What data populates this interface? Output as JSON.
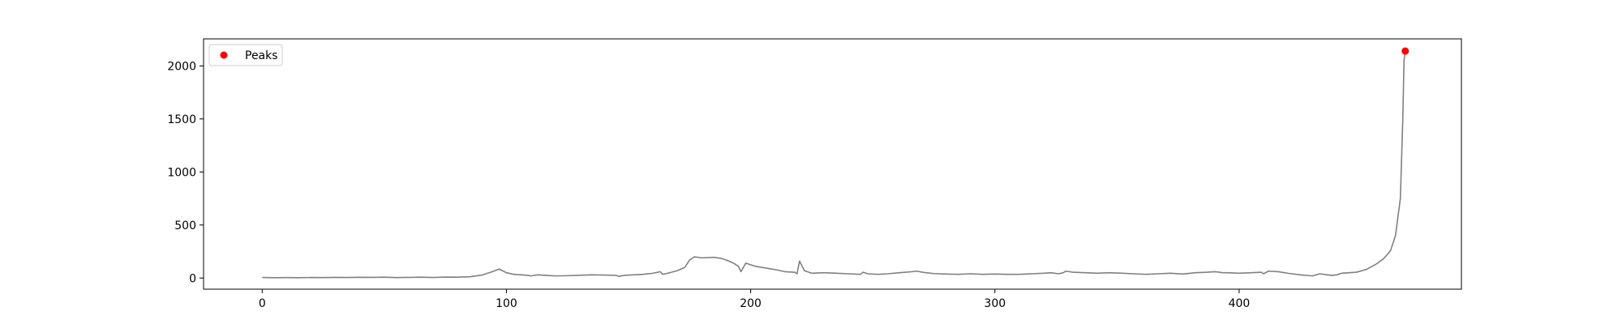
{
  "chart_data": {
    "type": "line",
    "title": "",
    "xlabel": "",
    "ylabel": "",
    "xlim": [
      -24,
      491
    ],
    "ylim": [
      -105,
      2255
    ],
    "xticks": [
      0,
      100,
      200,
      300,
      400
    ],
    "yticks": [
      0,
      500,
      1000,
      1500,
      2000
    ],
    "grid": false,
    "legend": {
      "placement": "upper-left",
      "entries": [
        "Peaks"
      ]
    },
    "series": [
      {
        "style": "line",
        "color": "#808080",
        "x": [
          0,
          5,
          10,
          15,
          20,
          25,
          30,
          35,
          40,
          45,
          50,
          55,
          60,
          65,
          70,
          75,
          80,
          85,
          90,
          94,
          97,
          100,
          103,
          106,
          109,
          110,
          113,
          116,
          120,
          125,
          130,
          135,
          140,
          145,
          146,
          148,
          152,
          156,
          160,
          163,
          164,
          166,
          170,
          173,
          175,
          177,
          180,
          185,
          188,
          190,
          193,
          195,
          196,
          198,
          202,
          206,
          210,
          214,
          218,
          219,
          220,
          222,
          225,
          230,
          235,
          240,
          245,
          246,
          248,
          252,
          256,
          260,
          265,
          268,
          271,
          275,
          280,
          285,
          290,
          295,
          300,
          305,
          310,
          315,
          320,
          323,
          326,
          328,
          329,
          332,
          337,
          342,
          347,
          352,
          357,
          362,
          367,
          372,
          377,
          382,
          387,
          390,
          392,
          393,
          395,
          400,
          405,
          409,
          410,
          412,
          416,
          420,
          425,
          430,
          433,
          436,
          438,
          440,
          442,
          445,
          448,
          452,
          456,
          459,
          461,
          462,
          464,
          466,
          467,
          467.5,
          468
        ],
        "y": [
          5,
          3,
          4,
          3,
          5,
          4,
          6,
          5,
          7,
          6,
          8,
          4,
          6,
          8,
          5,
          9,
          8,
          12,
          28,
          58,
          85,
          50,
          35,
          30,
          25,
          20,
          30,
          25,
          20,
          22,
          26,
          30,
          28,
          25,
          15,
          25,
          30,
          35,
          45,
          60,
          35,
          45,
          70,
          100,
          170,
          200,
          190,
          195,
          185,
          170,
          140,
          110,
          60,
          140,
          110,
          95,
          80,
          60,
          55,
          40,
          160,
          70,
          45,
          50,
          45,
          40,
          35,
          55,
          40,
          35,
          40,
          48,
          58,
          65,
          52,
          42,
          38,
          35,
          40,
          35,
          38,
          35,
          35,
          40,
          45,
          50,
          40,
          50,
          65,
          55,
          50,
          45,
          50,
          45,
          40,
          35,
          40,
          45,
          38,
          50,
          55,
          60,
          55,
          50,
          50,
          45,
          50,
          55,
          40,
          65,
          60,
          45,
          30,
          20,
          40,
          30,
          25,
          30,
          45,
          50,
          55,
          80,
          130,
          180,
          230,
          260,
          400,
          750,
          1500,
          2050,
          2140
        ]
      },
      {
        "name": "Peaks",
        "style": "scatter",
        "color": "#ff0000",
        "x": [
          468
        ],
        "y": [
          2140
        ]
      }
    ]
  }
}
